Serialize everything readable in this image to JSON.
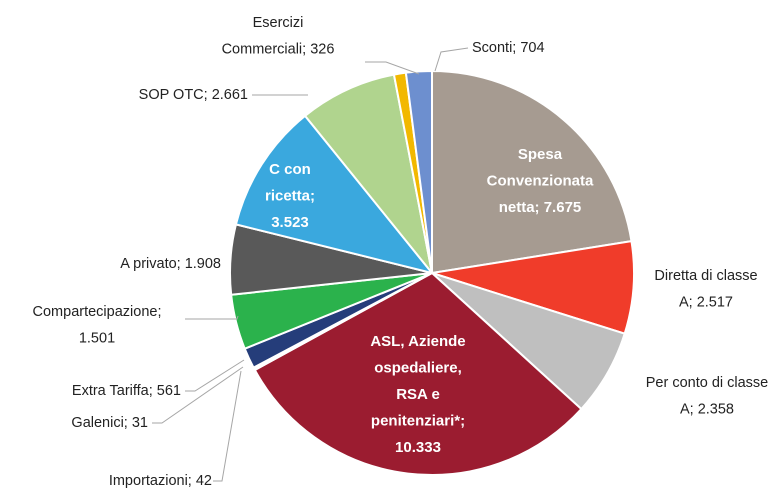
{
  "chart_data": {
    "type": "pie",
    "categories": [
      "Spesa Convenzionata netta; 7.675",
      "Diretta di classe A; 2.517",
      "Per conto di classe A; 2.358",
      "ASL, Aziende ospedaliere, RSA e penitenziari*; 10.333",
      "Importazioni; 42",
      "Galenici; 31",
      "Extra Tariffa; 561",
      "Compartecipazione; 1.501",
      "A privato; 1.908",
      "C con ricetta; 3.523",
      "SOP OTC; 2.661",
      "Esercizi Commerciali; 326",
      "Sconti; 704"
    ],
    "values": [
      7675,
      2517,
      2358,
      10333,
      42,
      31,
      561,
      1501,
      1908,
      3523,
      2661,
      326,
      704
    ],
    "colors": [
      "#a69b91",
      "#f03c2a",
      "#bfbfbf",
      "#9b1c30",
      "#7f7f7f",
      "#4f81bd",
      "#253d7a",
      "#2bb24c",
      "#595959",
      "#3aa8de",
      "#b0d48e",
      "#f2b800",
      "#6d8fcf"
    ]
  }
}
